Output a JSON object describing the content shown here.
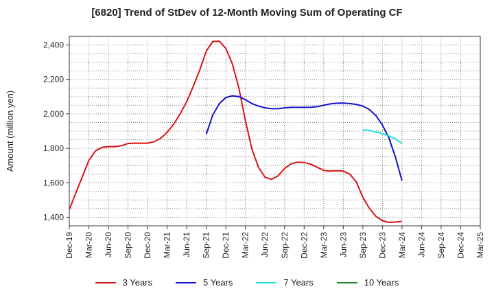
{
  "chart_data": {
    "type": "line",
    "title": "[6820]  Trend of StDev of 12-Month Moving Sum of Operating CF",
    "ylabel": "Amount (million yen)",
    "xlabel": "",
    "ylim": [
      1350,
      2450
    ],
    "y_ticks": [
      1400,
      1600,
      1800,
      2000,
      2200,
      2400
    ],
    "y_tick_labels": [
      "1,400",
      "1,600",
      "1,800",
      "2,000",
      "2,200",
      "2,400"
    ],
    "x_range": [
      "2019-12",
      "2025-03"
    ],
    "x_tick_labels": [
      "Dec-19",
      "Mar-20",
      "Jun-20",
      "Sep-20",
      "Dec-20",
      "Mar-21",
      "Jun-21",
      "Sep-21",
      "Dec-21",
      "Mar-22",
      "Jun-22",
      "Sep-22",
      "Dec-22",
      "Mar-23",
      "Jun-23",
      "Sep-23",
      "Dec-23",
      "Mar-24",
      "Jun-24",
      "Sep-24",
      "Dec-24",
      "Mar-25"
    ],
    "grid": true,
    "legend_position": "bottom",
    "series": [
      {
        "name": "3 Years",
        "color": "#dd1111",
        "x": [
          "2019-12",
          "2020-01",
          "2020-02",
          "2020-03",
          "2020-04",
          "2020-05",
          "2020-06",
          "2020-07",
          "2020-08",
          "2020-09",
          "2020-10",
          "2020-11",
          "2020-12",
          "2021-01",
          "2021-02",
          "2021-03",
          "2021-04",
          "2021-05",
          "2021-06",
          "2021-07",
          "2021-08",
          "2021-09",
          "2021-10",
          "2021-11",
          "2021-12",
          "2022-01",
          "2022-02",
          "2022-03",
          "2022-04",
          "2022-05",
          "2022-06",
          "2022-07",
          "2022-08",
          "2022-09",
          "2022-10",
          "2022-11",
          "2022-12",
          "2023-01",
          "2023-02",
          "2023-03",
          "2023-04",
          "2023-05",
          "2023-06",
          "2023-07",
          "2023-08",
          "2023-09",
          "2023-10",
          "2023-11",
          "2023-12",
          "2024-01",
          "2024-02",
          "2024-03"
        ],
        "values": [
          1445,
          1540,
          1635,
          1730,
          1785,
          1805,
          1810,
          1810,
          1815,
          1828,
          1830,
          1830,
          1830,
          1838,
          1858,
          1893,
          1940,
          2000,
          2070,
          2160,
          2255,
          2365,
          2420,
          2422,
          2380,
          2290,
          2150,
          1960,
          1795,
          1690,
          1632,
          1620,
          1640,
          1683,
          1710,
          1720,
          1718,
          1708,
          1690,
          1672,
          1668,
          1670,
          1668,
          1650,
          1605,
          1515,
          1452,
          1405,
          1380,
          1370,
          1372,
          1376
        ]
      },
      {
        "name": "5 Years",
        "color": "#1111cc",
        "x": [
          "2021-09",
          "2021-10",
          "2021-11",
          "2021-12",
          "2022-01",
          "2022-02",
          "2022-03",
          "2022-04",
          "2022-05",
          "2022-06",
          "2022-07",
          "2022-08",
          "2022-09",
          "2022-10",
          "2022-11",
          "2022-12",
          "2023-01",
          "2023-02",
          "2023-03",
          "2023-04",
          "2023-05",
          "2023-06",
          "2023-07",
          "2023-08",
          "2023-09",
          "2023-10",
          "2023-11",
          "2023-12",
          "2024-01",
          "2024-02",
          "2024-03"
        ],
        "values": [
          1882,
          1995,
          2060,
          2095,
          2105,
          2100,
          2082,
          2060,
          2045,
          2035,
          2030,
          2030,
          2035,
          2038,
          2038,
          2038,
          2038,
          2042,
          2050,
          2058,
          2062,
          2063,
          2060,
          2055,
          2045,
          2025,
          1990,
          1935,
          1860,
          1748,
          1612
        ]
      },
      {
        "name": "7 Years",
        "color": "#22dddd",
        "x": [
          "2023-09",
          "2023-10",
          "2023-11",
          "2023-12",
          "2024-01",
          "2024-02",
          "2024-03"
        ],
        "values": [
          1908,
          1903,
          1895,
          1885,
          1872,
          1855,
          1828
        ]
      },
      {
        "name": "10 Years",
        "color": "#228822",
        "x": [],
        "values": []
      }
    ]
  }
}
